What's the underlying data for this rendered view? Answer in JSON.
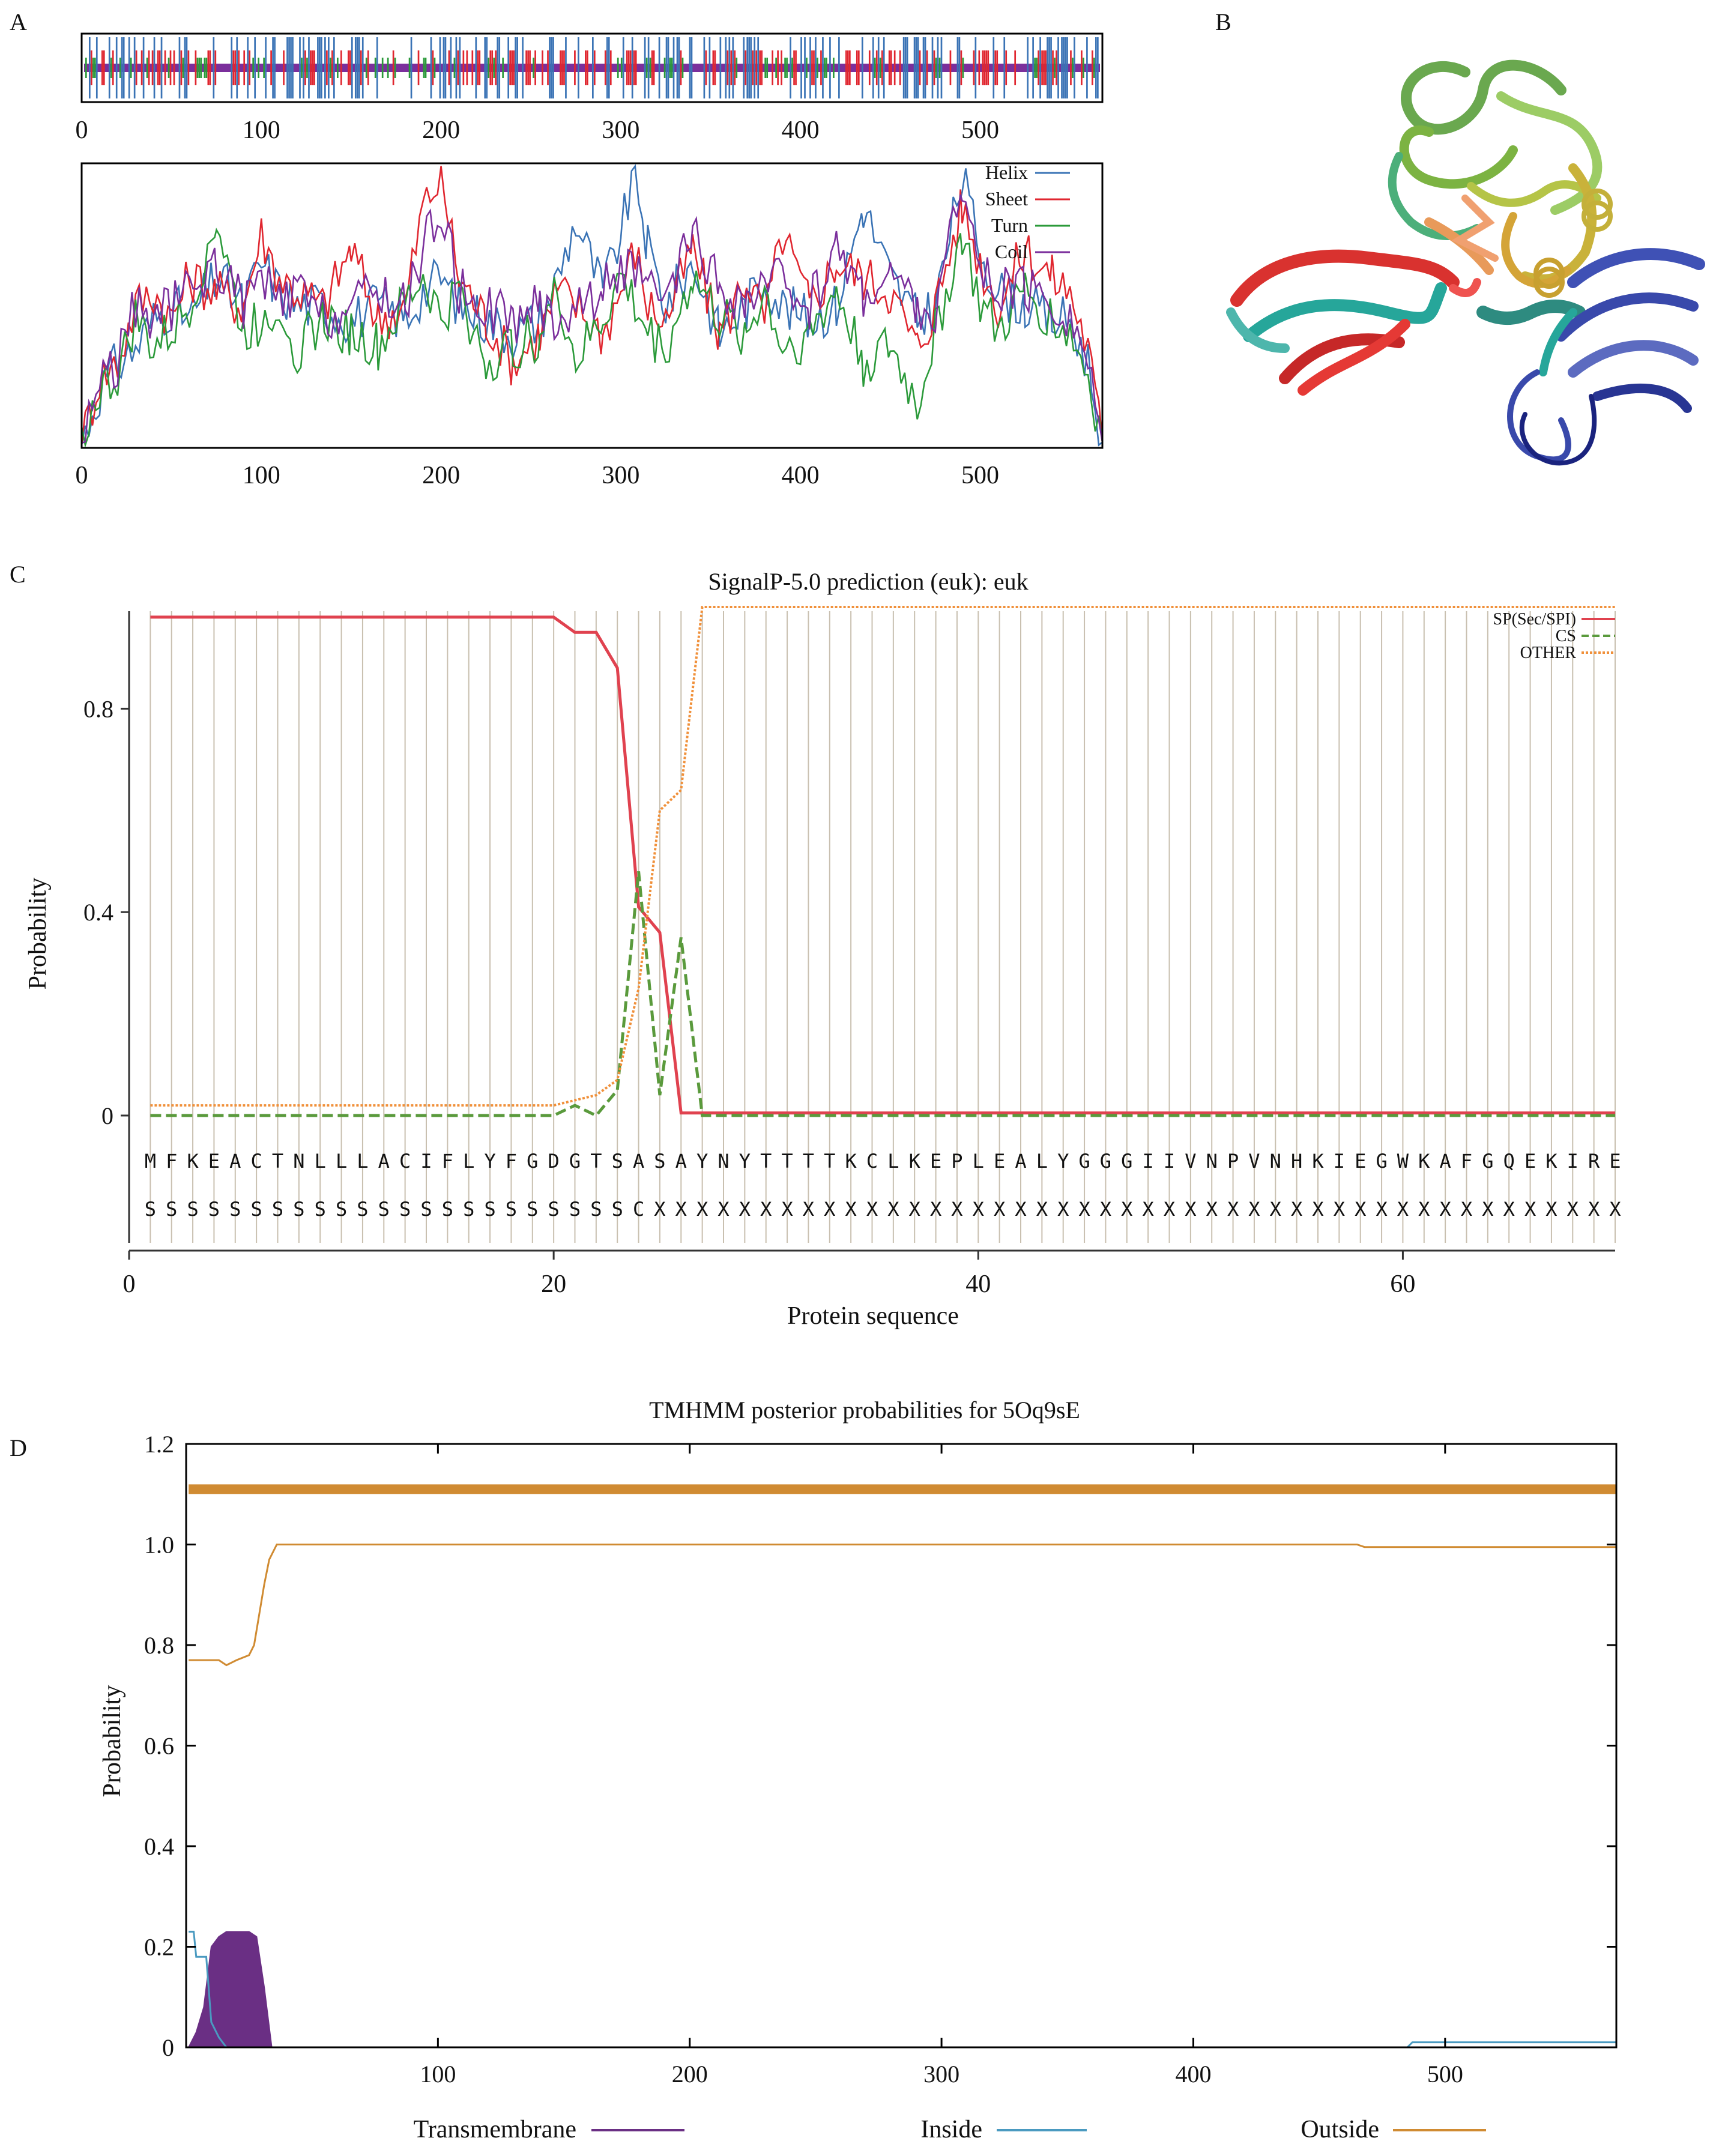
{
  "colors": {
    "helix": "#3a73b5",
    "sheet": "#e0262f",
    "turn": "#2b9a3a",
    "coil": "#7b2f9c",
    "sp": "#e0424f",
    "cs": "#5a9a3c",
    "other": "#f0903a",
    "tm": "#6a2f84",
    "inside": "#4a9ac0",
    "outside": "#d08b32"
  },
  "chart_data": [
    {
      "panel": "A",
      "type": "line",
      "title": "",
      "xlabel": "",
      "ylabel": "",
      "xlim": [
        0,
        568
      ],
      "ylim": [
        0,
        1
      ],
      "x_ticks": [
        "0",
        "100",
        "200",
        "300",
        "400",
        "500"
      ],
      "track_x_ticks": [
        "0",
        "100",
        "200",
        "300",
        "400",
        "500"
      ],
      "legend": [
        "Helix",
        "Sheet",
        "Turn",
        "Coil"
      ],
      "legend_position": "top-right",
      "series": [
        {
          "name": "Helix",
          "x": [
            0,
            10,
            20,
            30,
            40,
            50,
            60,
            75,
            90,
            100,
            110,
            120,
            135,
            150,
            165,
            180,
            190,
            200,
            210,
            225,
            240,
            255,
            265,
            275,
            290,
            300,
            308,
            315,
            325,
            340,
            355,
            370,
            380,
            390,
            405,
            420,
            435,
            450,
            465,
            475,
            490,
            500,
            510,
            525,
            540,
            550,
            560,
            568
          ],
          "values": [
            0.02,
            0.2,
            0.3,
            0.35,
            0.45,
            0.5,
            0.45,
            0.6,
            0.5,
            0.65,
            0.55,
            0.5,
            0.5,
            0.45,
            0.5,
            0.45,
            0.55,
            0.6,
            0.5,
            0.45,
            0.4,
            0.45,
            0.6,
            0.8,
            0.55,
            0.75,
            0.98,
            0.7,
            0.5,
            0.65,
            0.4,
            0.5,
            0.6,
            0.5,
            0.45,
            0.5,
            0.85,
            0.6,
            0.45,
            0.5,
            0.95,
            0.7,
            0.55,
            0.5,
            0.45,
            0.45,
            0.3,
            0.02
          ]
        },
        {
          "name": "Sheet",
          "x": [
            0,
            10,
            20,
            30,
            40,
            50,
            60,
            75,
            90,
            100,
            110,
            120,
            135,
            150,
            165,
            180,
            190,
            200,
            210,
            225,
            240,
            255,
            265,
            275,
            290,
            300,
            308,
            315,
            325,
            340,
            355,
            370,
            380,
            390,
            405,
            420,
            435,
            450,
            465,
            475,
            490,
            500,
            510,
            525,
            540,
            550,
            560,
            568
          ],
          "values": [
            0.02,
            0.25,
            0.3,
            0.5,
            0.55,
            0.45,
            0.6,
            0.55,
            0.5,
            0.75,
            0.6,
            0.55,
            0.5,
            0.7,
            0.45,
            0.5,
            0.85,
            0.95,
            0.6,
            0.45,
            0.3,
            0.4,
            0.55,
            0.5,
            0.4,
            0.55,
            0.7,
            0.5,
            0.45,
            0.7,
            0.4,
            0.6,
            0.45,
            0.75,
            0.5,
            0.65,
            0.6,
            0.55,
            0.35,
            0.5,
            0.85,
            0.65,
            0.5,
            0.7,
            0.6,
            0.55,
            0.35,
            0.02
          ]
        },
        {
          "name": "Turn",
          "x": [
            0,
            10,
            20,
            30,
            40,
            50,
            60,
            75,
            90,
            100,
            110,
            120,
            135,
            150,
            165,
            180,
            190,
            200,
            210,
            225,
            240,
            255,
            265,
            275,
            290,
            300,
            308,
            315,
            325,
            340,
            355,
            370,
            380,
            390,
            405,
            420,
            435,
            450,
            465,
            475,
            490,
            500,
            510,
            525,
            540,
            550,
            560,
            568
          ],
          "values": [
            0.02,
            0.2,
            0.25,
            0.45,
            0.35,
            0.4,
            0.5,
            0.8,
            0.4,
            0.45,
            0.5,
            0.35,
            0.45,
            0.4,
            0.35,
            0.5,
            0.6,
            0.45,
            0.55,
            0.3,
            0.35,
            0.4,
            0.55,
            0.3,
            0.45,
            0.6,
            0.5,
            0.4,
            0.35,
            0.6,
            0.45,
            0.4,
            0.55,
            0.35,
            0.4,
            0.55,
            0.3,
            0.35,
            0.15,
            0.4,
            0.75,
            0.5,
            0.4,
            0.55,
            0.45,
            0.4,
            0.25,
            0.02
          ]
        },
        {
          "name": "Coil",
          "x": [
            0,
            10,
            20,
            30,
            40,
            50,
            60,
            75,
            90,
            100,
            110,
            120,
            135,
            150,
            165,
            180,
            190,
            200,
            210,
            225,
            240,
            255,
            265,
            275,
            290,
            300,
            308,
            315,
            325,
            340,
            355,
            370,
            380,
            390,
            405,
            420,
            435,
            450,
            465,
            475,
            490,
            500,
            510,
            525,
            540,
            550,
            560,
            568
          ],
          "values": [
            0.02,
            0.25,
            0.3,
            0.5,
            0.45,
            0.5,
            0.55,
            0.65,
            0.5,
            0.6,
            0.5,
            0.55,
            0.45,
            0.5,
            0.55,
            0.5,
            0.7,
            0.85,
            0.55,
            0.5,
            0.45,
            0.5,
            0.45,
            0.5,
            0.55,
            0.65,
            0.6,
            0.55,
            0.5,
            0.75,
            0.55,
            0.5,
            0.55,
            0.6,
            0.5,
            0.7,
            0.55,
            0.6,
            0.5,
            0.45,
            0.95,
            0.6,
            0.55,
            0.55,
            0.5,
            0.45,
            0.3,
            0.02
          ]
        }
      ]
    },
    {
      "panel": "C",
      "type": "line",
      "title": "SignalP-5.0 prediction (euk): euk",
      "xlabel": "Protein sequence",
      "ylabel": "Probability",
      "xlim": [
        0,
        70
      ],
      "ylim": [
        -0.25,
        1.0
      ],
      "x_ticks": [
        "0",
        "20",
        "40",
        "60"
      ],
      "y_ticks": [
        "0",
        "0.4",
        "0.8"
      ],
      "legend": [
        "SP(Sec/SPI)",
        "CS",
        "OTHER"
      ],
      "legend_position": "top-right",
      "sequence": [
        "M",
        "F",
        "K",
        "E",
        "A",
        "C",
        "T",
        "N",
        "L",
        "L",
        "L",
        "A",
        "C",
        "I",
        "F",
        "L",
        "Y",
        "F",
        "G",
        "D",
        "G",
        "T",
        "S",
        "A",
        "S",
        "A",
        "Y",
        "N",
        "Y",
        "T",
        "T",
        "T",
        "T",
        "K",
        "C",
        "L",
        "K",
        "E",
        "P",
        "L",
        "E",
        "A",
        "L",
        "Y",
        "G",
        "G",
        "G",
        "I",
        "I",
        "V",
        "N",
        "P",
        "V",
        "N",
        "H",
        "K",
        "I",
        "E",
        "G",
        "W",
        "K",
        "A",
        "F",
        "G",
        "Q",
        "E",
        "K",
        "I",
        "R",
        "E"
      ],
      "annotation": [
        "S",
        "S",
        "S",
        "S",
        "S",
        "S",
        "S",
        "S",
        "S",
        "S",
        "S",
        "S",
        "S",
        "S",
        "S",
        "S",
        "S",
        "S",
        "S",
        "S",
        "S",
        "S",
        "S",
        "C",
        "X",
        "X",
        "X",
        "X",
        "X",
        "X",
        "X",
        "X",
        "X",
        "X",
        "X",
        "X",
        "X",
        "X",
        "X",
        "X",
        "X",
        "X",
        "X",
        "X",
        "X",
        "X",
        "X",
        "X",
        "X",
        "X",
        "X",
        "X",
        "X",
        "X",
        "X",
        "X",
        "X",
        "X",
        "X",
        "X",
        "X",
        "X",
        "X",
        "X",
        "X",
        "X",
        "X",
        "X",
        "X",
        "X"
      ],
      "series": [
        {
          "name": "SP(Sec/SPI)",
          "x": [
            1,
            20,
            21,
            22,
            23,
            24,
            25,
            26,
            27,
            70
          ],
          "values": [
            0.98,
            0.98,
            0.95,
            0.95,
            0.88,
            0.41,
            0.36,
            0.005,
            0.005,
            0.005
          ]
        },
        {
          "name": "CS",
          "x": [
            1,
            20,
            21,
            22,
            23,
            24,
            25,
            26,
            27,
            70
          ],
          "values": [
            0.0,
            0.0,
            0.02,
            0.0,
            0.05,
            0.48,
            0.04,
            0.35,
            0.0,
            0.0
          ]
        },
        {
          "name": "OTHER",
          "x": [
            1,
            20,
            21,
            22,
            23,
            24,
            25,
            26,
            27,
            70
          ],
          "values": [
            0.02,
            0.02,
            0.03,
            0.04,
            0.07,
            0.25,
            0.6,
            0.64,
            1.0,
            1.0
          ]
        }
      ]
    },
    {
      "panel": "D",
      "type": "line",
      "title": "TMHMM posterior probabilities for 5Oq9sE",
      "xlabel": "",
      "ylabel": "Probability",
      "xlim": [
        0,
        568
      ],
      "ylim": [
        0,
        1.2
      ],
      "x_ticks": [
        "100",
        "200",
        "300",
        "400",
        "500"
      ],
      "y_ticks": [
        "0",
        "0.2",
        "0.4",
        "0.6",
        "0.8",
        "1.0",
        "1.2"
      ],
      "legend": [
        "Transmembrane",
        "Inside",
        "Outside"
      ],
      "legend_position": "bottom",
      "topology_line": {
        "name": "Outside",
        "y": 1.11,
        "from": 1,
        "to": 568
      },
      "series": [
        {
          "name": "Transmembrane",
          "x": [
            1,
            4,
            7,
            10,
            13,
            16,
            19,
            22,
            25,
            28,
            31,
            34
          ],
          "values": [
            0.0,
            0.03,
            0.08,
            0.2,
            0.22,
            0.23,
            0.23,
            0.23,
            0.23,
            0.22,
            0.12,
            0.0
          ]
        },
        {
          "name": "Inside",
          "x": [
            1,
            3,
            4,
            8,
            10,
            13,
            16,
            30,
            35,
            100,
            300,
            485,
            487,
            568
          ],
          "values": [
            0.23,
            0.23,
            0.18,
            0.18,
            0.05,
            0.02,
            0.0,
            0.0,
            0.0,
            0.0,
            0.0,
            0.0,
            0.01,
            0.01
          ]
        },
        {
          "name": "Outside",
          "x": [
            1,
            13,
            16,
            20,
            25,
            27,
            29,
            31,
            33,
            36,
            300,
            465,
            468,
            568
          ],
          "values": [
            0.77,
            0.77,
            0.76,
            0.77,
            0.78,
            0.8,
            0.86,
            0.92,
            0.97,
            1.0,
            1.0,
            1.0,
            0.995,
            0.995
          ]
        }
      ]
    }
  ],
  "labels": {
    "panel_a": "A",
    "panel_b": "B",
    "panel_c": "C",
    "panel_d": "D"
  }
}
